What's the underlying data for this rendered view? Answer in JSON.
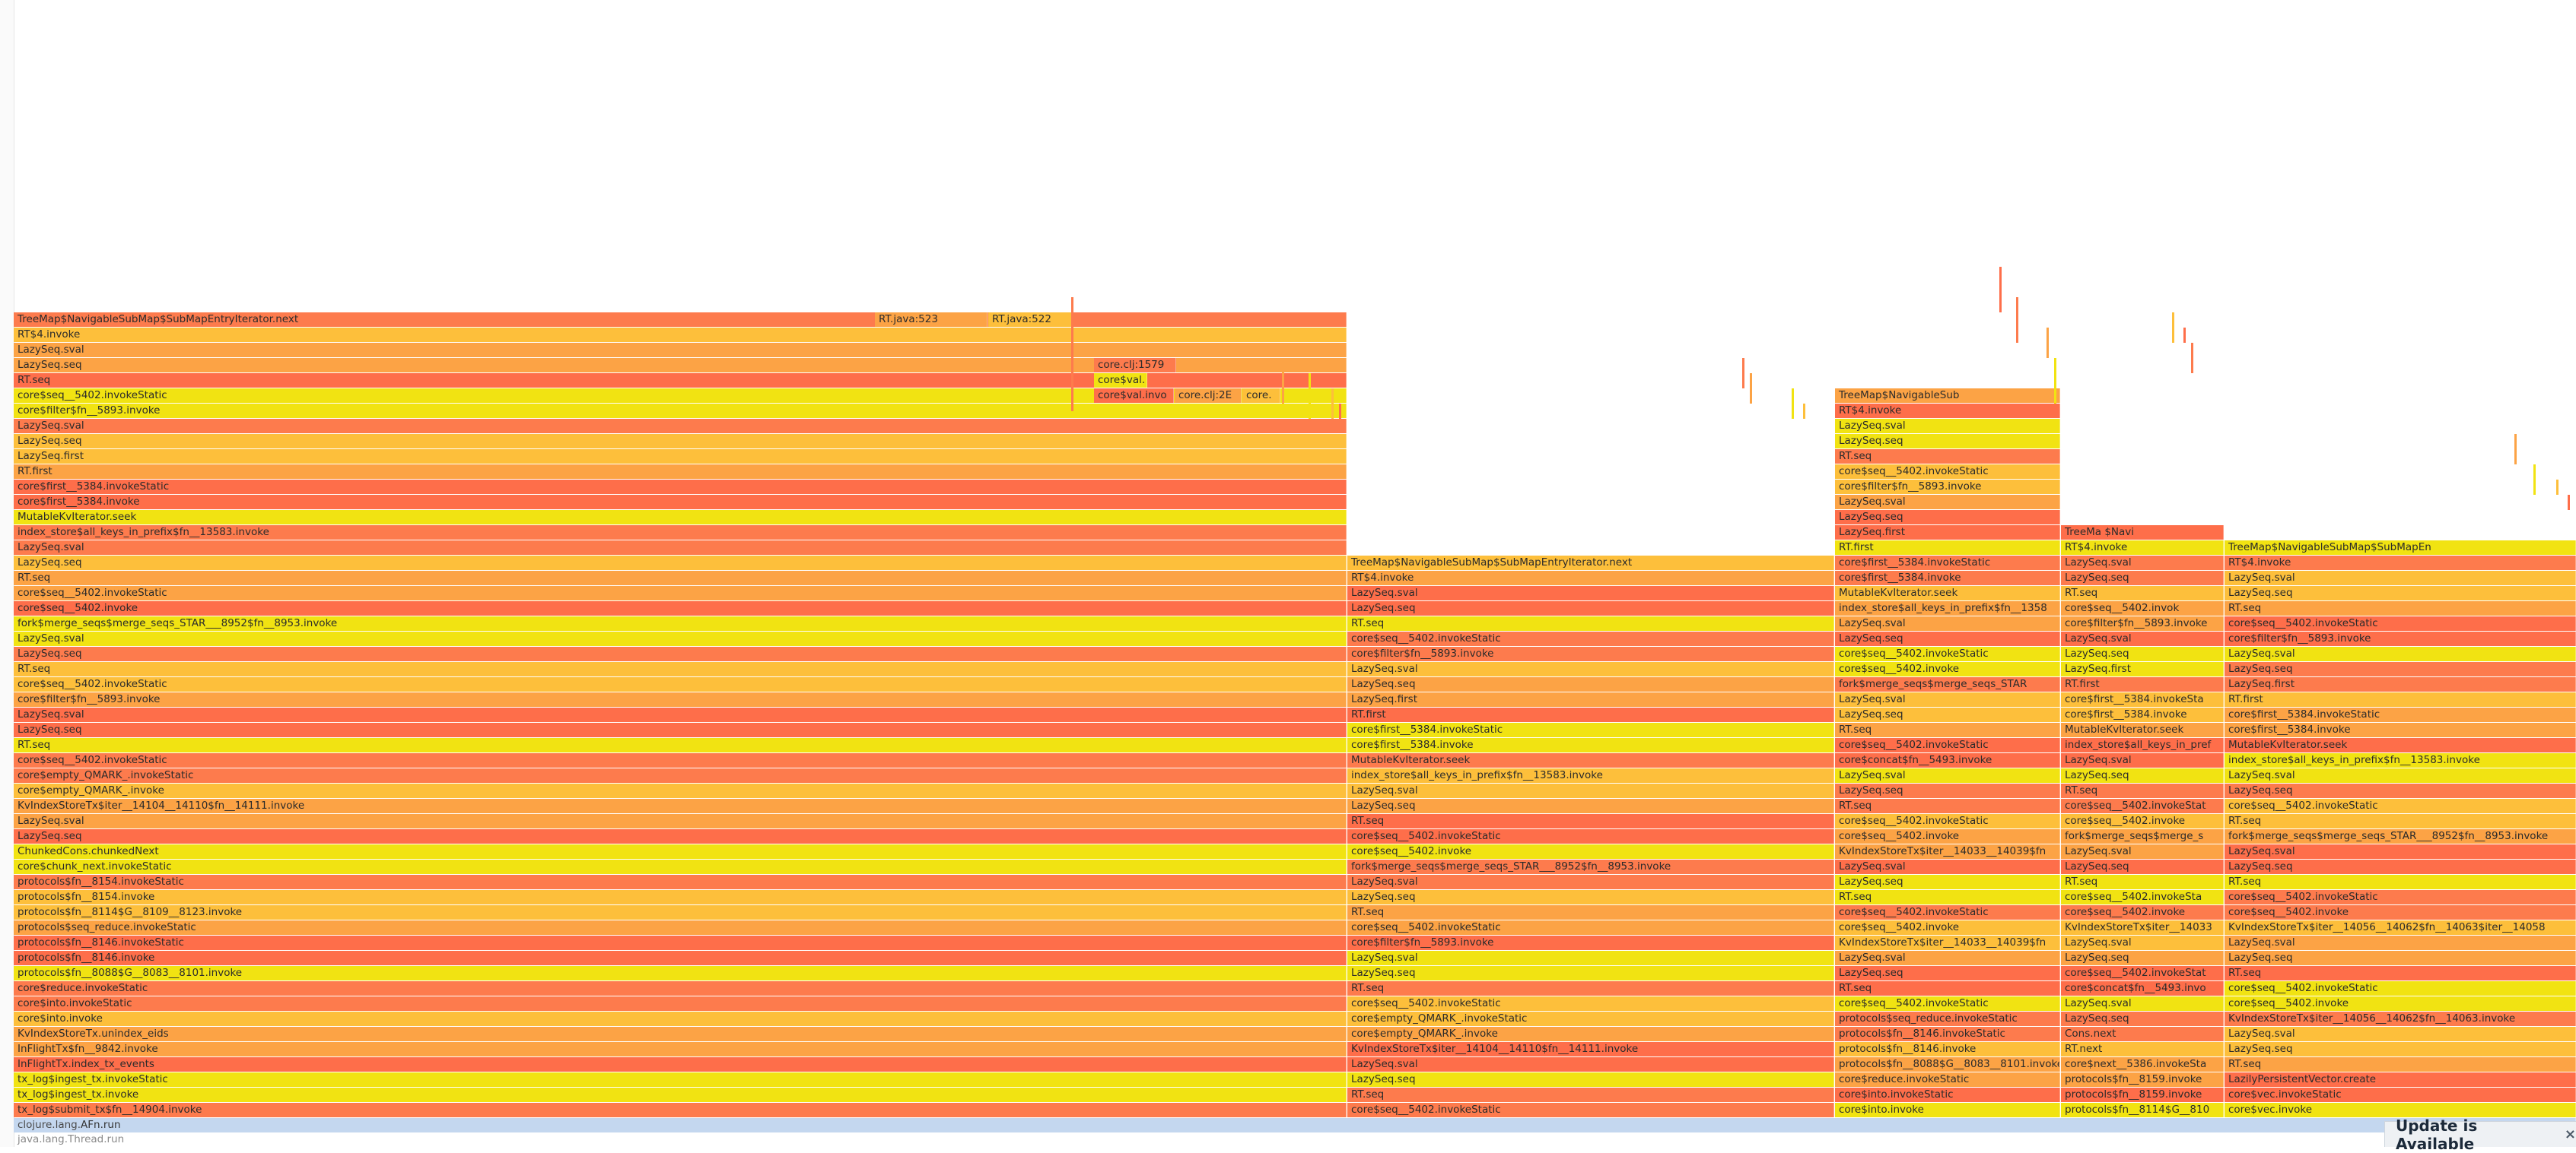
{
  "flame_columns": [
    {
      "name": "col-main",
      "frames": [
        "TreeMap$NavigableSubMap$SubMapEntryIterator.next",
        "RT$4.invoke",
        "LazySeq.sval",
        "LazySeq.seq",
        "RT.seq",
        "core$seq__5402.invokeStatic",
        "core$filter$fn__5893.invoke",
        "LazySeq.sval",
        "LazySeq.seq",
        "LazySeq.first",
        "RT.first",
        "core$first__5384.invokeStatic",
        "core$first__5384.invoke",
        "MutableKvIterator.seek",
        "index_store$all_keys_in_prefix$fn__13583.invoke",
        "LazySeq.sval",
        "LazySeq.seq",
        "RT.seq",
        "core$seq__5402.invokeStatic",
        "core$seq__5402.invoke",
        "fork$merge_seqs$merge_seqs_STAR___8952$fn__8953.invoke",
        "LazySeq.sval",
        "LazySeq.seq",
        "RT.seq",
        "core$seq__5402.invokeStatic",
        "core$filter$fn__5893.invoke",
        "LazySeq.sval",
        "LazySeq.seq",
        "RT.seq",
        "core$seq__5402.invokeStatic",
        "core$empty_QMARK_.invokeStatic",
        "core$empty_QMARK_.invoke",
        "KvIndexStoreTx$iter__14104__14110$fn__14111.invoke",
        "LazySeq.sval",
        "LazySeq.seq",
        "ChunkedCons.chunkedNext",
        "core$chunk_next.invokeStatic",
        "protocols$fn__8154.invokeStatic",
        "protocols$fn__8154.invoke",
        "protocols$fn__8114$G__8109__8123.invoke",
        "protocols$seq_reduce.invokeStatic",
        "protocols$fn__8146.invokeStatic",
        "protocols$fn__8146.invoke",
        "protocols$fn__8088$G__8083__8101.invoke",
        "core$reduce.invokeStatic",
        "core$into.invokeStatic",
        "core$into.invoke",
        "KvIndexStoreTx.unindex_eids",
        "InFlightTx$fn__9842.invoke",
        "InFlightTx.index_tx_events",
        "tx_log$ingest_tx.invokeStatic",
        "tx_log$ingest_tx.invoke",
        "tx_log$submit_tx$fn__14904.invoke"
      ]
    },
    {
      "name": "col-second",
      "frames": [
        "TreeMap$NavigableSubMap$SubMapEntryIterator.next",
        "RT$4.invoke",
        "LazySeq.sval",
        "LazySeq.seq",
        "RT.seq",
        "core$seq__5402.invokeStatic",
        "core$filter$fn__5893.invoke",
        "LazySeq.sval",
        "LazySeq.seq",
        "LazySeq.first",
        "RT.first",
        "core$first__5384.invokeStatic",
        "core$first__5384.invoke",
        "MutableKvIterator.seek",
        "index_store$all_keys_in_prefix$fn__13583.invoke",
        "LazySeq.sval",
        "LazySeq.seq",
        "RT.seq",
        "core$seq__5402.invokeStatic",
        "core$seq__5402.invoke",
        "fork$merge_seqs$merge_seqs_STAR___8952$fn__8953.invoke",
        "LazySeq.sval",
        "LazySeq.seq",
        "RT.seq",
        "core$seq__5402.invokeStatic",
        "core$filter$fn__5893.invoke",
        "LazySeq.sval",
        "LazySeq.seq",
        "RT.seq",
        "core$seq__5402.invokeStatic",
        "core$empty_QMARK_.invokeStatic",
        "core$empty_QMARK_.invoke",
        "KvIndexStoreTx$iter__14104__14110$fn__14111.invoke",
        "LazySeq.sval",
        "LazySeq.seq",
        "RT.seq",
        "core$seq__5402.invokeStatic"
      ]
    },
    {
      "name": "col-third",
      "frames": [
        "TreeMap$NavigableSub",
        "RT$4.invoke",
        "LazySeq.sval",
        "LazySeq.seq",
        "RT.seq",
        "core$seq__5402.invokeStatic",
        "core$filter$fn__5893.invoke",
        "LazySeq.sval",
        "LazySeq.seq",
        "LazySeq.first",
        "RT.first",
        "core$first__5384.invokeStatic",
        "core$first__5384.invoke",
        "MutableKvIterator.seek",
        "index_store$all_keys_in_prefix$fn__1358",
        "LazySeq.sval",
        "LazySeq.seq",
        "core$seq__5402.invokeStatic",
        "core$seq__5402.invoke",
        "fork$merge_seqs$merge_seqs_STAR",
        "LazySeq.sval",
        "LazySeq.seq",
        "RT.seq",
        "core$seq__5402.invokeStatic",
        "core$concat$fn__5493.invoke",
        "LazySeq.sval",
        "LazySeq.seq",
        "RT.seq",
        "core$seq__5402.invokeStatic",
        "core$seq__5402.invoke",
        "KvIndexStoreTx$iter__14033__14039$fn",
        "LazySeq.sval",
        "LazySeq.seq",
        "RT.seq",
        "core$seq__5402.invokeStatic",
        "core$seq__5402.invoke",
        "KvIndexStoreTx$iter__14033__14039$fn",
        "LazySeq.sval",
        "LazySeq.seq",
        "RT.seq",
        "core$seq__5402.invokeStatic",
        "protocols$seq_reduce.invokeStatic",
        "protocols$fn__8146.invokeStatic",
        "protocols$fn__8146.invoke",
        "protocols$fn__8088$G__8083__8101.invoke",
        "core$reduce.invokeStatic",
        "core$into.invokeStatic",
        "core$into.invoke"
      ]
    },
    {
      "name": "col-fourth",
      "frames": [
        "TreeMa $Navi",
        "RT$4.invoke",
        "LazySeq.sval",
        "LazySeq.seq",
        "RT.seq",
        "core$seq__5402.invok",
        "core$filter$fn__5893.invoke",
        "LazySeq.sval",
        "LazySeq.seq",
        "LazySeq.first",
        "RT.first",
        "core$first__5384.invokeSta",
        "core$first__5384.invoke",
        "MutableKvIterator.seek",
        "index_store$all_keys_in_pref",
        "LazySeq.sval",
        "LazySeq.seq",
        "RT.seq",
        "core$seq__5402.invokeStat",
        "core$seq__5402.invoke",
        "fork$merge_seqs$merge_s",
        "LazySeq.sval",
        "LazySeq.seq",
        "RT.seq",
        "core$seq__5402.invokeSta",
        "core$seq__5402.invoke",
        "KvIndexStoreTx$iter__14033",
        "LazySeq.sval",
        "LazySeq.seq",
        "core$seq__5402.invokeStat",
        "core$concat$fn__5493.invo",
        "LazySeq.sval",
        "LazySeq.seq",
        "Cons.next",
        "RT.next",
        "core$next__5386.invokeSta",
        "protocols$fn__8159.invoke",
        "protocols$fn__8159.invoke",
        "protocols$fn__8114$G__810"
      ]
    },
    {
      "name": "col-fifth",
      "frames": [
        "TreeMap$NavigableSubMap$SubMapEn",
        "RT$4.invoke",
        "LazySeq.sval",
        "LazySeq.seq",
        "RT.seq",
        "core$seq__5402.invokeStatic",
        "core$filter$fn__5893.invoke",
        "LazySeq.sval",
        "LazySeq.seq",
        "LazySeq.first",
        "RT.first",
        "core$first__5384.invokeStatic",
        "core$first__5384.invoke",
        "MutableKvIterator.seek",
        "index_store$all_keys_in_prefix$fn__13583.invoke",
        "LazySeq.sval",
        "LazySeq.seq",
        "core$seq__5402.invokeStatic",
        "RT.seq",
        "fork$merge_seqs$merge_seqs_STAR___8952$fn__8953.invoke",
        "LazySeq.sval",
        "LazySeq.seq",
        "RT.seq",
        "core$seq__5402.invokeStatic",
        "core$seq__5402.invoke",
        "KvIndexStoreTx$iter__14056__14062$fn__14063$iter__14058",
        "LazySeq.sval",
        "LazySeq.seq",
        "RT.seq",
        "core$seq__5402.invokeStatic",
        "core$seq__5402.invoke",
        "KvIndexStoreTx$iter__14056__14062$fn__14063.invoke",
        "LazySeq.sval",
        "LazySeq.seq",
        "RT.seq",
        "LazilyPersistentVector.create",
        "core$vec.invokeStatic",
        "core$vec.invoke"
      ]
    }
  ],
  "side_frames": {
    "rt_java_523": "RT.java:523",
    "rt_java_522": "RT.java:522",
    "core_clj_1579": "core.clj:1579",
    "core_val": "core$val.",
    "core_val_invo": "core$val.invo",
    "core_clj_2": "core.clj:2E",
    "core_dot": "core."
  },
  "root_frames": {
    "afn_run_prefix": "clojure.lang.",
    "afn_run_name": "AFn.run",
    "thread_run": "java.lang.Thread.run"
  },
  "notification": {
    "title": "Update is Available",
    "close_icon": "close-icon"
  },
  "palette": [
    "#fd7b4d",
    "#fca345",
    "#f1e312",
    "#fdbf3b",
    "#fe6e4a"
  ]
}
